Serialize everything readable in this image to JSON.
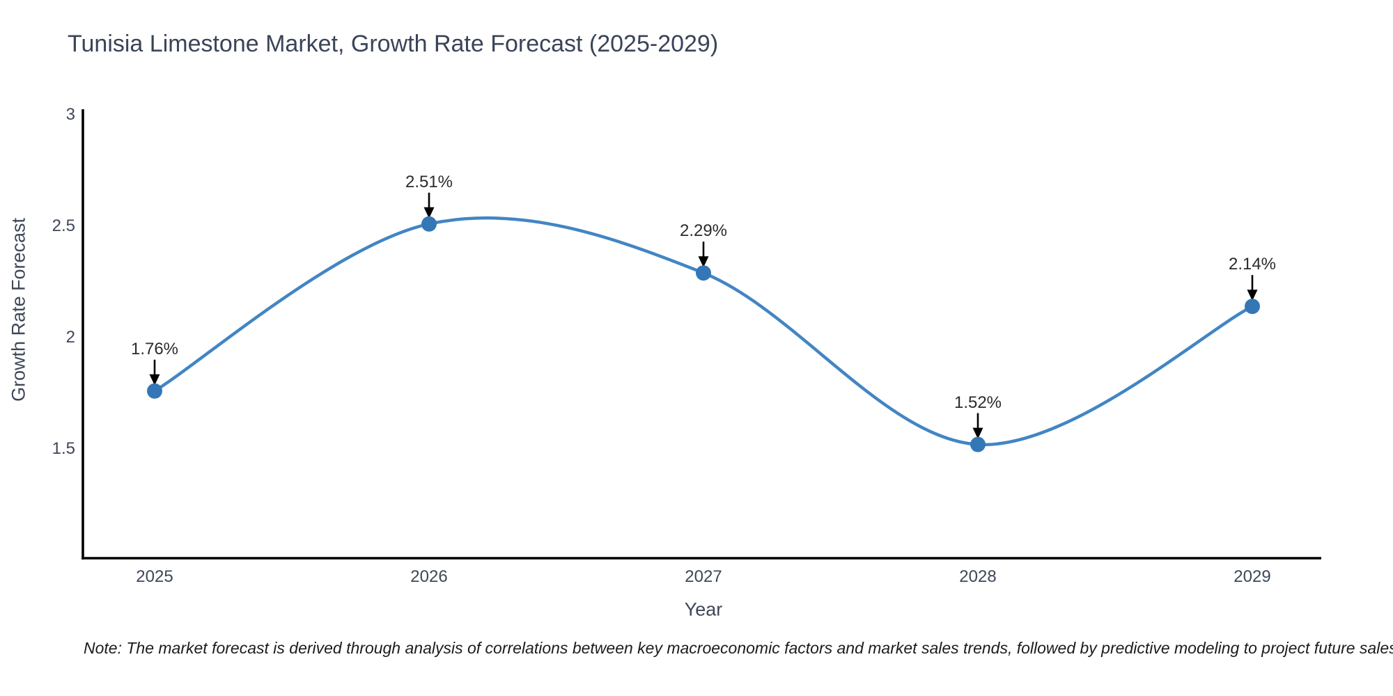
{
  "title": "Tunisia Limestone Market, Growth Rate Forecast (2025-2029)",
  "note": "Note: The market forecast is derived through analysis of correlations between key macroeconomic factors and market sales trends, followed by predictive modeling to project future sales",
  "chart_data": {
    "type": "line",
    "title": "Tunisia Limestone Market, Growth Rate Forecast (2025-2029)",
    "xlabel": "Year",
    "ylabel": "Growth Rate Forecast",
    "categories": [
      "2025",
      "2026",
      "2027",
      "2028",
      "2029"
    ],
    "values": [
      1.76,
      2.51,
      2.29,
      1.52,
      2.14
    ],
    "point_labels": [
      "1.76%",
      "2.51%",
      "2.29%",
      "1.52%",
      "2.14%"
    ],
    "yticks": [
      1.5,
      2,
      2.5,
      3
    ],
    "ytick_labels": [
      "1.5",
      "2",
      "2.5",
      "3"
    ],
    "ylim": [
      1.02,
      3.02
    ],
    "grid": false,
    "legend_position": "none",
    "smooth_line": true,
    "line_color": "#4285c4",
    "marker_color": "#3477b6",
    "annotation_arrow_color": "#000000",
    "axis_color": "#000000",
    "text_color": "#3d4757"
  }
}
